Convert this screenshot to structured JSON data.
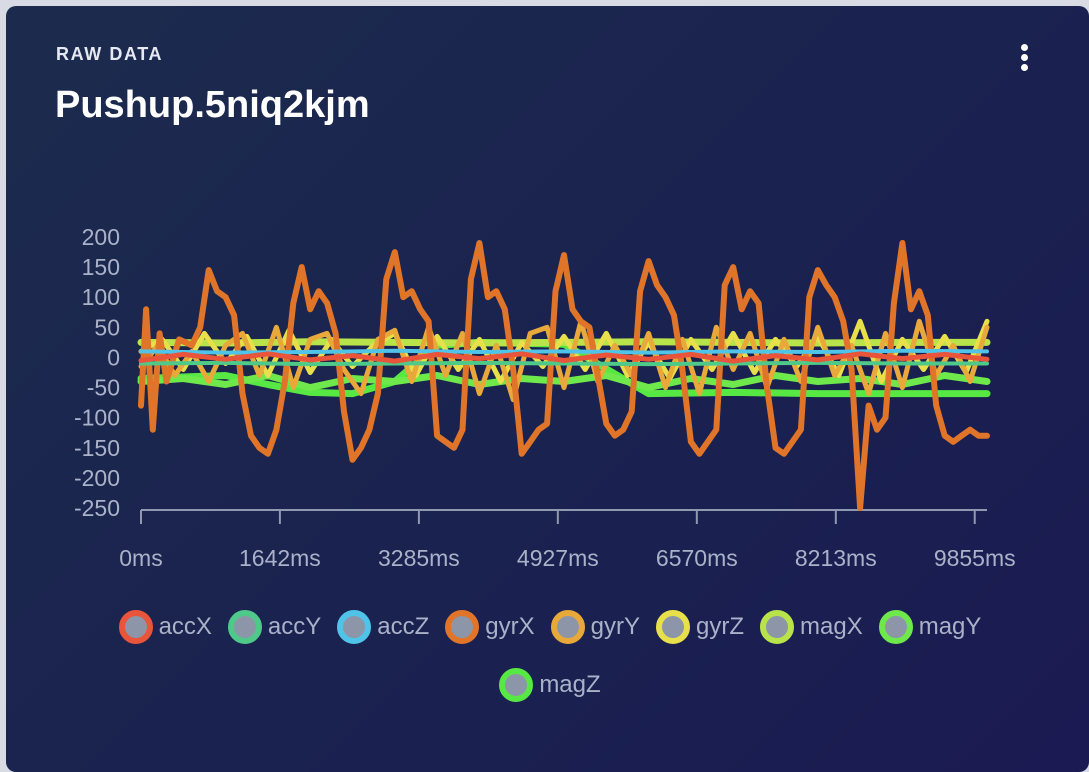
{
  "card": {
    "eyebrow": "RAW DATA",
    "title": "Pushup.5niq2kjm",
    "menu_icon": "more-vertical-icon"
  },
  "chart_data": {
    "type": "line",
    "title": "Pushup.5niq2kjm",
    "xlabel": "",
    "ylabel": "",
    "xlim": [
      0,
      10000
    ],
    "ylim": [
      -250,
      200
    ],
    "yticks": [
      200,
      150,
      100,
      50,
      0,
      -50,
      -100,
      -150,
      -200,
      -250
    ],
    "xticks": [
      0,
      1642,
      3285,
      4927,
      6570,
      8213,
      9855
    ],
    "xtick_labels": [
      "0ms",
      "1642ms",
      "3285ms",
      "4927ms",
      "6570ms",
      "8213ms",
      "9855ms"
    ],
    "grid": false,
    "legend_position": "bottom",
    "series": [
      {
        "name": "accX",
        "color": "#e8553a",
        "width": 5,
        "x": [
          0,
          500,
          1000,
          1500,
          2000,
          2500,
          3000,
          3500,
          4000,
          4500,
          5000,
          5500,
          6000,
          6500,
          7000,
          7500,
          8000,
          8500,
          9000,
          9500,
          10000
        ],
        "values": [
          -5,
          5,
          -3,
          6,
          -4,
          3,
          -6,
          5,
          -2,
          6,
          -5,
          4,
          -3,
          5,
          -6,
          3,
          -4,
          6,
          -2,
          5,
          -3
        ]
      },
      {
        "name": "accY",
        "color": "#4fc98a",
        "width": 4,
        "x": [
          0,
          1000,
          2000,
          3000,
          4000,
          5000,
          6000,
          7000,
          8000,
          9000,
          10000
        ],
        "values": [
          -10,
          -9,
          -11,
          -10,
          -9,
          -10,
          -11,
          -10,
          -9,
          -10,
          -10
        ]
      },
      {
        "name": "accZ",
        "color": "#4fc3e8",
        "width": 4,
        "x": [
          0,
          1000,
          2000,
          3000,
          4000,
          5000,
          6000,
          7000,
          8000,
          9000,
          10000
        ],
        "values": [
          10,
          8,
          9,
          11,
          9,
          10,
          8,
          10,
          9,
          11,
          10
        ]
      },
      {
        "name": "gyrX",
        "color": "#e0752a",
        "width": 6,
        "x": [
          0,
          60,
          140,
          220,
          300,
          450,
          600,
          700,
          800,
          900,
          1000,
          1100,
          1200,
          1300,
          1400,
          1500,
          1600,
          1700,
          1800,
          1900,
          2000,
          2100,
          2200,
          2300,
          2400,
          2500,
          2600,
          2700,
          2800,
          2900,
          3000,
          3100,
          3200,
          3300,
          3400,
          3500,
          3600,
          3700,
          3800,
          3900,
          4000,
          4100,
          4200,
          4300,
          4400,
          4500,
          4600,
          4700,
          4800,
          4900,
          5000,
          5100,
          5200,
          5300,
          5400,
          5500,
          5600,
          5700,
          5800,
          5900,
          6000,
          6100,
          6200,
          6300,
          6400,
          6500,
          6600,
          6700,
          6800,
          6900,
          7000,
          7100,
          7200,
          7300,
          7400,
          7500,
          7600,
          7700,
          7800,
          7900,
          8000,
          8100,
          8200,
          8300,
          8400,
          8500,
          8600,
          8700,
          8800,
          8900,
          9000,
          9100,
          9200,
          9300,
          9400,
          9500,
          9600,
          9700,
          9800,
          9900,
          10000
        ],
        "values": [
          -80,
          80,
          -120,
          40,
          -40,
          30,
          20,
          50,
          145,
          110,
          100,
          70,
          -60,
          -130,
          -150,
          -160,
          -120,
          -40,
          90,
          150,
          80,
          110,
          90,
          40,
          -90,
          -170,
          -150,
          -120,
          -60,
          130,
          175,
          100,
          110,
          80,
          60,
          -130,
          -140,
          -150,
          -120,
          130,
          190,
          100,
          110,
          80,
          -20,
          -160,
          -140,
          -120,
          -110,
          110,
          170,
          80,
          60,
          50,
          -30,
          -110,
          -130,
          -120,
          -90,
          110,
          160,
          120,
          100,
          70,
          -20,
          -140,
          -160,
          -140,
          -120,
          120,
          150,
          80,
          110,
          90,
          -50,
          -150,
          -160,
          -140,
          -120,
          100,
          145,
          120,
          100,
          60,
          -20,
          -250,
          -80,
          -120,
          -100,
          90,
          190,
          80,
          110,
          70,
          -80,
          -130,
          -140,
          -130,
          -120,
          -130,
          -130
        ]
      },
      {
        "name": "gyrY",
        "color": "#e8a83a",
        "width": 5,
        "x": [
          0,
          200,
          400,
          600,
          800,
          1000,
          1200,
          1400,
          1600,
          1800,
          2000,
          2200,
          2400,
          2600,
          2800,
          3000,
          3200,
          3400,
          3600,
          3800,
          4000,
          4200,
          4400,
          4600,
          4800,
          5000,
          5200,
          5400,
          5600,
          5800,
          6000,
          6200,
          6400,
          6600,
          6800,
          7000,
          7200,
          7400,
          7600,
          7800,
          8000,
          8200,
          8400,
          8600,
          8800,
          9000,
          9200,
          9400,
          9600,
          9800,
          10000
        ],
        "values": [
          -15,
          20,
          -30,
          10,
          -40,
          20,
          40,
          -30,
          50,
          -50,
          30,
          40,
          -20,
          -60,
          30,
          45,
          -40,
          50,
          -30,
          40,
          -60,
          20,
          -70,
          40,
          50,
          -50,
          60,
          -40,
          20,
          -30,
          40,
          -50,
          30,
          -60,
          50,
          -20,
          40,
          -50,
          30,
          -40,
          50,
          -30,
          20,
          -60,
          40,
          -50,
          60,
          -30,
          20,
          -40,
          50
        ]
      },
      {
        "name": "gyrZ",
        "color": "#e8e04a",
        "width": 5,
        "x": [
          0,
          250,
          500,
          750,
          1000,
          1250,
          1500,
          1750,
          2000,
          2250,
          2500,
          2750,
          3000,
          3250,
          3500,
          3750,
          4000,
          4250,
          4500,
          4750,
          5000,
          5250,
          5500,
          5750,
          6000,
          6250,
          6500,
          6750,
          7000,
          7250,
          7500,
          7750,
          8000,
          8250,
          8500,
          8750,
          9000,
          9250,
          9500,
          9750,
          10000
        ],
        "values": [
          10,
          30,
          -20,
          40,
          -10,
          35,
          -30,
          45,
          -25,
          30,
          -15,
          20,
          40,
          -30,
          35,
          -20,
          30,
          -40,
          25,
          -15,
          35,
          -20,
          40,
          -30,
          25,
          -35,
          30,
          -20,
          40,
          -25,
          30,
          -15,
          35,
          -30,
          60,
          -40,
          30,
          -20,
          35,
          -25,
          60
        ]
      },
      {
        "name": "magX",
        "color": "#b8e34a",
        "width": 7,
        "x": [
          0,
          1000,
          2000,
          3000,
          4000,
          5000,
          6000,
          7000,
          8000,
          9000,
          10000
        ],
        "values": [
          25,
          24,
          26,
          25,
          24,
          25,
          26,
          25,
          24,
          25,
          25
        ]
      },
      {
        "name": "magY",
        "color": "#6ee84a",
        "width": 7,
        "x": [
          0,
          500,
          1000,
          1500,
          2000,
          2500,
          3000,
          3500,
          4000,
          4500,
          5000,
          5500,
          6000,
          6500,
          7000,
          7500,
          8000,
          8500,
          9000,
          9500,
          10000
        ],
        "values": [
          -40,
          -35,
          -45,
          -30,
          -50,
          -35,
          -40,
          -30,
          -45,
          -35,
          -40,
          -30,
          -50,
          -35,
          -45,
          -30,
          -40,
          -35,
          -45,
          -30,
          -40
        ]
      },
      {
        "name": "magZ",
        "color": "#58e844",
        "width": 7,
        "x": [
          0,
          1000,
          1500,
          2000,
          2500,
          3000,
          3500,
          4000,
          5000,
          6000,
          7000,
          8000,
          9000,
          10000
        ],
        "values": [
          -35,
          -30,
          -45,
          -58,
          -60,
          -40,
          20,
          25,
          22,
          -60,
          -58,
          -60,
          -60,
          -60
        ]
      }
    ]
  }
}
